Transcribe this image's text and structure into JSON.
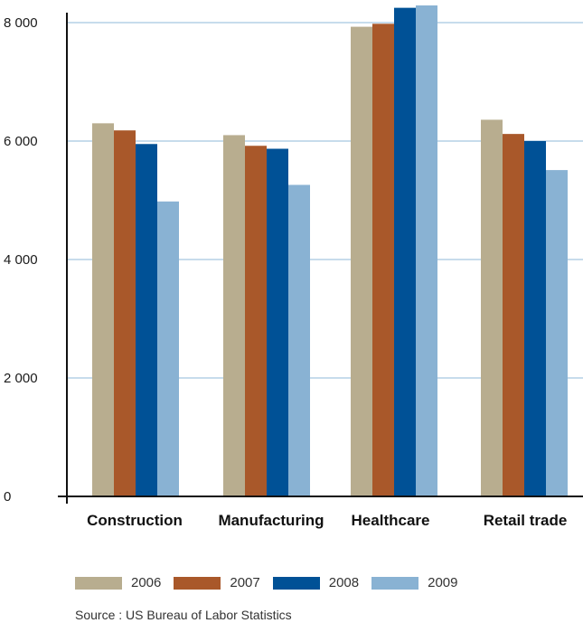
{
  "chart_data": {
    "type": "bar",
    "categories": [
      "Construction",
      "Manufacturing",
      "Healthcare",
      "Retail trade"
    ],
    "series": [
      {
        "name": "2006",
        "color": "#b8ad8f",
        "values": [
          6300,
          6100,
          7930,
          6360
        ]
      },
      {
        "name": "2007",
        "color": "#a9582a",
        "values": [
          6180,
          5920,
          7980,
          6120
        ]
      },
      {
        "name": "2008",
        "color": "#005196",
        "values": [
          5950,
          5870,
          8250,
          6000
        ]
      },
      {
        "name": "2009",
        "color": "#89b2d3",
        "values": [
          4980,
          5260,
          8290,
          5510
        ]
      }
    ],
    "yticks": [
      0,
      2000,
      4000,
      6000,
      8000
    ],
    "ytick_labels": [
      "0",
      "2 000",
      "4 000",
      "6 000",
      "8 000"
    ],
    "ylim": [
      0,
      8000
    ],
    "grid": true,
    "legend_position": "bottom",
    "source": "Source : US Bureau of Labor Statistics"
  }
}
